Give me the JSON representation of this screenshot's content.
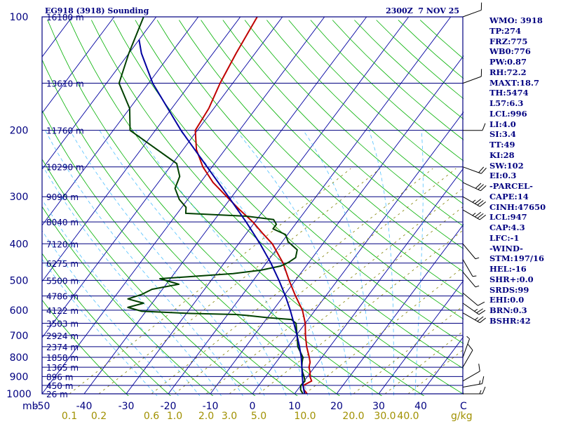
{
  "chart_data": {
    "type": "line",
    "title": "EG918 (3918) Sounding",
    "timestamp": "2300Z  7 NOV 25",
    "pressure_axis": {
      "unit_label": "mb",
      "range": [
        1000,
        100
      ],
      "ticks": [
        "100",
        "200",
        "300",
        "400",
        "500",
        "600",
        "700",
        "800",
        "900",
        "1000"
      ]
    },
    "temperature_axis": {
      "unit_label": "C",
      "range": [
        -50,
        50
      ],
      "ticks": [
        "-50",
        "-40",
        "-30",
        "-20",
        "-10",
        "0",
        "10",
        "20",
        "30",
        "40"
      ]
    },
    "mixing_ratio_axis": {
      "unit_label": "g/kg",
      "labels": [
        {
          "label": "0.1",
          "at_c": -43.5
        },
        {
          "label": "0.2",
          "at_c": -36.5
        },
        {
          "label": "0.6",
          "at_c": -24
        },
        {
          "label": "1.0",
          "at_c": -18.5
        },
        {
          "label": "2.0",
          "at_c": -11
        },
        {
          "label": "3.0",
          "at_c": -5.5
        },
        {
          "label": "5.0",
          "at_c": 1.5
        },
        {
          "label": "10.0",
          "at_c": 12.5
        },
        {
          "label": "20.0",
          "at_c": 24
        },
        {
          "label": "30.0",
          "at_c": 31.5
        },
        {
          "label": "40.0",
          "at_c": 37
        }
      ]
    },
    "height_labels": [
      {
        "p": 100,
        "label": "16180 m"
      },
      {
        "p": 150,
        "label": "13610 m"
      },
      {
        "p": 200,
        "label": "11760 m"
      },
      {
        "p": 250,
        "label": "10290 m"
      },
      {
        "p": 300,
        "label": "9090 m"
      },
      {
        "p": 350,
        "label": "8040 m"
      },
      {
        "p": 400,
        "label": "7120 m"
      },
      {
        "p": 450,
        "label": "6275 m"
      },
      {
        "p": 500,
        "label": "5500 m"
      },
      {
        "p": 550,
        "label": "4786 m"
      },
      {
        "p": 600,
        "label": "4122 m"
      },
      {
        "p": 650,
        "label": "3503 m"
      },
      {
        "p": 700,
        "label": "2924 m"
      },
      {
        "p": 750,
        "label": "2374 m"
      },
      {
        "p": 800,
        "label": "1858 m"
      },
      {
        "p": 850,
        "label": "1365 m"
      },
      {
        "p": 900,
        "label": "896 m"
      },
      {
        "p": 950,
        "label": "450 m"
      },
      {
        "p": 1000,
        "label": "26 m"
      }
    ],
    "isobars_mb": [
      100,
      150,
      200,
      250,
      300,
      350,
      400,
      450,
      500,
      550,
      600,
      650,
      700,
      750,
      800,
      850,
      900,
      950,
      1000
    ],
    "series": [
      {
        "name": "temperature",
        "color": "#c00000",
        "points": [
          [
            1000,
            13
          ],
          [
            975,
            11.5
          ],
          [
            950,
            10.6
          ],
          [
            925,
            11.8
          ],
          [
            900,
            10.6
          ],
          [
            875,
            9.8
          ],
          [
            850,
            8.7
          ],
          [
            825,
            8.1
          ],
          [
            800,
            7
          ],
          [
            750,
            4.5
          ],
          [
            700,
            2.2
          ],
          [
            650,
            0
          ],
          [
            600,
            -3
          ],
          [
            550,
            -7.2
          ],
          [
            500,
            -11.5
          ],
          [
            450,
            -16
          ],
          [
            400,
            -22
          ],
          [
            375,
            -26.2
          ],
          [
            350,
            -30.5
          ],
          [
            325,
            -35.8
          ],
          [
            300,
            -41.2
          ],
          [
            275,
            -47
          ],
          [
            250,
            -52.2
          ],
          [
            225,
            -56.8
          ],
          [
            200,
            -60.5
          ],
          [
            175,
            -61.2
          ],
          [
            150,
            -63
          ],
          [
            125,
            -64.5
          ],
          [
            100,
            -66
          ]
        ]
      },
      {
        "name": "dewpoint",
        "color": "#004000",
        "points": [
          [
            1000,
            12
          ],
          [
            975,
            10.7
          ],
          [
            950,
            10
          ],
          [
            925,
            10.2
          ],
          [
            900,
            9.2
          ],
          [
            875,
            8
          ],
          [
            850,
            7
          ],
          [
            825,
            6.2
          ],
          [
            800,
            5.5
          ],
          [
            750,
            2.4
          ],
          [
            700,
            0.2
          ],
          [
            650,
            -2.2
          ],
          [
            635,
            -4
          ],
          [
            628,
            -10
          ],
          [
            620,
            -15
          ],
          [
            616,
            -18
          ],
          [
            612,
            -29
          ],
          [
            604,
            -41
          ],
          [
            590,
            -45
          ],
          [
            575,
            -42
          ],
          [
            560,
            -46.5
          ],
          [
            545,
            -44
          ],
          [
            528,
            -42.5
          ],
          [
            512,
            -37
          ],
          [
            495,
            -42.5
          ],
          [
            480,
            -26
          ],
          [
            470,
            -20
          ],
          [
            458,
            -16
          ],
          [
            448,
            -14.8
          ],
          [
            435,
            -14
          ],
          [
            415,
            -15
          ],
          [
            395,
            -18.6
          ],
          [
            378,
            -20.5
          ],
          [
            365,
            -24.5
          ],
          [
            355,
            -24.5
          ],
          [
            345,
            -26
          ],
          [
            338,
            -33
          ],
          [
            332,
            -48
          ],
          [
            320,
            -49
          ],
          [
            305,
            -52
          ],
          [
            285,
            -55
          ],
          [
            265,
            -56
          ],
          [
            245,
            -59
          ],
          [
            220,
            -68
          ],
          [
            200,
            -76
          ],
          [
            175,
            -80
          ],
          [
            150,
            -87
          ],
          [
            125,
            -90
          ],
          [
            100,
            -93
          ]
        ]
      },
      {
        "name": "parcel",
        "color": "#0000a0",
        "points": [
          [
            1000,
            12.4
          ],
          [
            950,
            10.5
          ],
          [
            900,
            8.8
          ],
          [
            850,
            7
          ],
          [
            800,
            5.1
          ],
          [
            750,
            2.8
          ],
          [
            700,
            0.2
          ],
          [
            650,
            -2.7
          ],
          [
            600,
            -5.9
          ],
          [
            550,
            -9.6
          ],
          [
            500,
            -13.9
          ],
          [
            450,
            -18.9
          ],
          [
            400,
            -24.9
          ],
          [
            350,
            -32.1
          ],
          [
            300,
            -40.8
          ],
          [
            250,
            -51.2
          ],
          [
            200,
            -63.9
          ],
          [
            150,
            -79
          ],
          [
            125,
            -87
          ],
          [
            115,
            -90
          ]
        ]
      }
    ],
    "wind_barbs": [
      {
        "p": 100,
        "dir": 250,
        "kt": 10
      },
      {
        "p": 150,
        "dir": 250,
        "kt": 10
      },
      {
        "p": 200,
        "dir": 270,
        "kt": 10
      },
      {
        "p": 250,
        "dir": 290,
        "kt": 20
      },
      {
        "p": 275,
        "dir": 295,
        "kt": 30
      },
      {
        "p": 300,
        "dir": 300,
        "kt": 35
      },
      {
        "p": 325,
        "dir": 300,
        "kt": 35
      },
      {
        "p": 400,
        "dir": 320,
        "kt": 5
      },
      {
        "p": 440,
        "dir": 330,
        "kt": 5
      },
      {
        "p": 475,
        "dir": 320,
        "kt": 5
      },
      {
        "p": 540,
        "dir": 310,
        "kt": 10
      },
      {
        "p": 575,
        "dir": 305,
        "kt": 25
      },
      {
        "p": 610,
        "dir": 300,
        "kt": 25
      },
      {
        "p": 800,
        "dir": 200,
        "kt": 5
      },
      {
        "p": 850,
        "dir": 210,
        "kt": 10
      },
      {
        "p": 925,
        "dir": 240,
        "kt": 10
      },
      {
        "p": 960,
        "dir": 260,
        "kt": 15
      },
      {
        "p": 1000,
        "dir": 270,
        "kt": 15
      }
    ],
    "indices": [
      "WMO: 3918",
      "TP:274",
      "FRZ:775",
      "WB0:776",
      "PW:0.87",
      "RH:72.2",
      "MAXT:18.7",
      "TH:5474",
      "L57:6.3",
      "LCL:996",
      "LI:4.0",
      "SI:3.4",
      "TT:49",
      "KI:28",
      "SW:102",
      "EI:0.3",
      "-PARCEL-",
      "CAPE:14",
      "CINH:47650",
      "LCL:947",
      "CAP:4.3",
      "LFC:-1",
      "-WIND-",
      "STM:197/16",
      "HEL:-16",
      "SHR+:0.0",
      "SRDS:99",
      "EHI:0.0",
      "BRN:0.3",
      "BSHR:42"
    ],
    "colors": {
      "isobar": "#000080",
      "isotherm": "#0000a0",
      "dry_adiabat": "#00b000",
      "moist_adiabat": "#4fc0ff",
      "mixing_ratio": "#808000",
      "mixing_label": "#a09000",
      "axis_label": "#000080"
    }
  }
}
